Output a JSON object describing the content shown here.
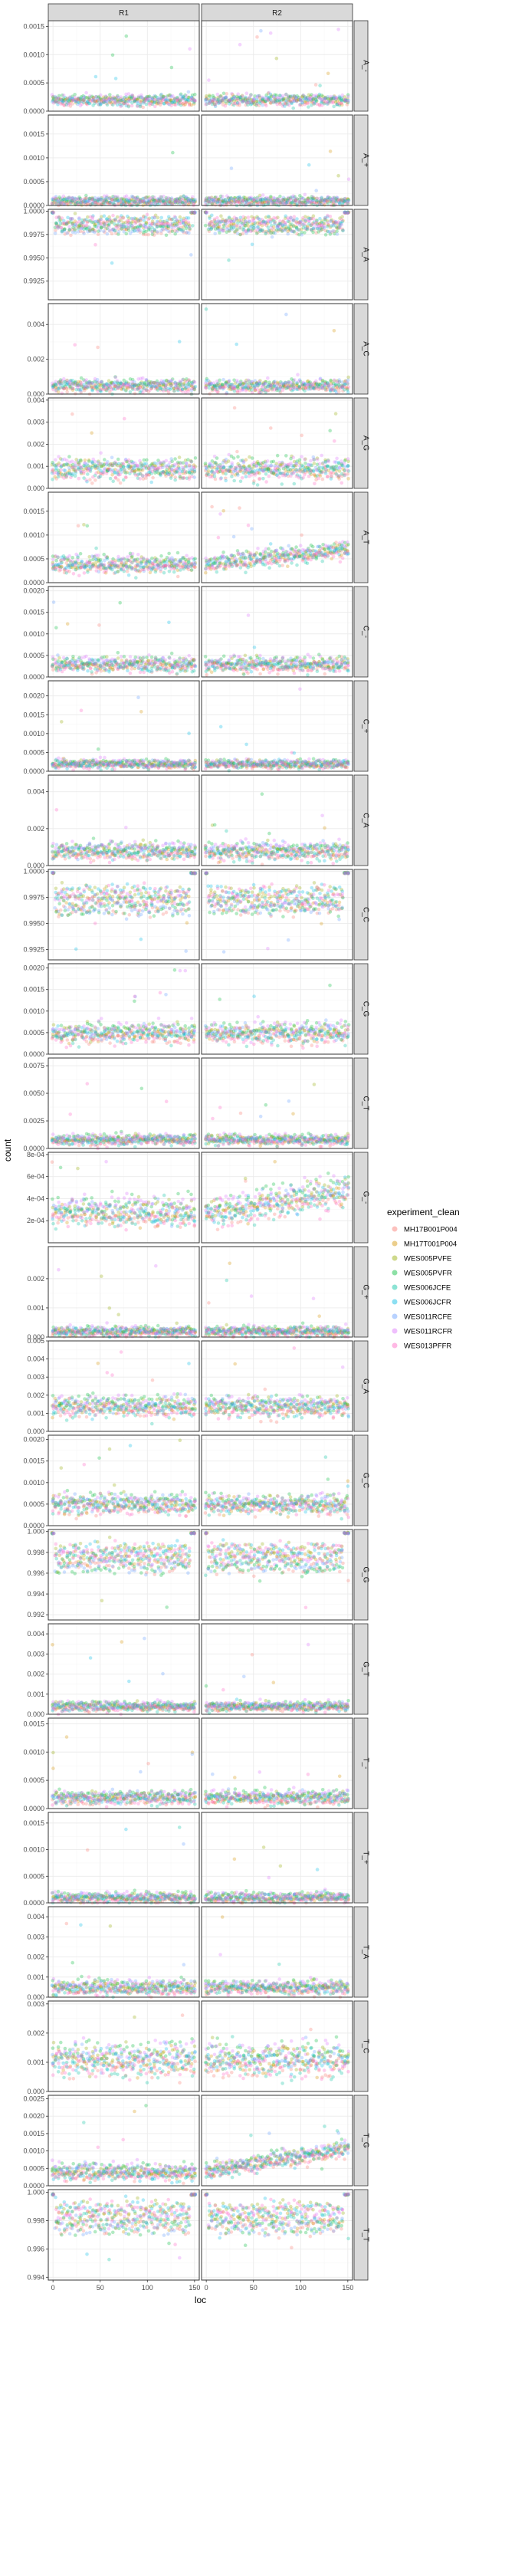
{
  "chart_data": {
    "type": "scatter",
    "facet_columns": [
      "R1",
      "R2"
    ],
    "xlabel": "loc",
    "ylabel": "count",
    "xlim": [
      -5,
      155
    ],
    "x_ticks": [
      0,
      50,
      100,
      150
    ],
    "x_tick_labels": [
      "0",
      "50",
      "100",
      "150"
    ],
    "legend": {
      "title": "experiment_clean",
      "position": "right",
      "entries": [
        "MH17B001P004",
        "MH17T001P004",
        "WES005PVFE",
        "WES005PVFR",
        "WES006JCFE",
        "WES006JCFR",
        "WES011RCFE",
        "WES011RCFR",
        "WES013PFFR"
      ],
      "colors": [
        "#F8766D",
        "#D39200",
        "#93AA00",
        "#00BA38",
        "#00C19F",
        "#00B9E3",
        "#619CFF",
        "#DB72FB",
        "#FF61C3"
      ]
    },
    "point_alpha": 0.3,
    "grid": true,
    "rows": [
      {
        "label": "A_-",
        "ylim": [
          0,
          0.0016
        ],
        "yticks": [
          0,
          0.0005,
          0.001,
          0.0015
        ],
        "yticklabels": [
          "0.0000",
          "0.0005",
          "0.0010",
          "0.0015"
        ],
        "level": 0.0002,
        "spread": 8e-05,
        "outlier_max": 0.0015,
        "r2_trend": 0
      },
      {
        "label": "A_+",
        "ylim": [
          0,
          0.0019
        ],
        "yticks": [
          0,
          0.0005,
          0.001,
          0.0015
        ],
        "yticklabels": [
          "0.0000",
          "0.0005",
          "0.0010",
          "0.0015"
        ],
        "level": 0.0001,
        "spread": 8e-05,
        "outlier_max": 0.0016,
        "r2_trend": 0
      },
      {
        "label": "A_A",
        "ylim": [
          0.9905,
          1.0002
        ],
        "yticks": [
          0.9925,
          0.995,
          0.9975,
          1.0
        ],
        "yticklabels": [
          "0.9925",
          "0.9950",
          "0.9975",
          "1.0000"
        ],
        "level": 0.9985,
        "spread": 0.0006,
        "outlier_max": 0.9935,
        "r2_trend": 0
      },
      {
        "label": "A_C",
        "ylim": [
          0,
          0.0052
        ],
        "yticks": [
          0,
          0.002,
          0.004
        ],
        "yticklabels": [
          "0.000",
          "0.002",
          "0.004"
        ],
        "level": 0.0005,
        "spread": 0.0003,
        "outlier_max": 0.005,
        "r2_trend": 0
      },
      {
        "label": "A_G",
        "ylim": [
          0,
          0.0041
        ],
        "yticks": [
          0,
          0.001,
          0.002,
          0.003,
          0.004
        ],
        "yticklabels": [
          "0.000",
          "0.001",
          "0.002",
          "0.003",
          "0.004"
        ],
        "level": 0.0009,
        "spread": 0.0004,
        "outlier_max": 0.0038,
        "r2_trend": 0
      },
      {
        "label": "A_T",
        "ylim": [
          0,
          0.0019
        ],
        "yticks": [
          0,
          0.0005,
          0.001,
          0.0015
        ],
        "yticklabels": [
          "0.0000",
          "0.0005",
          "0.0010",
          "0.0015"
        ],
        "level": 0.0004,
        "spread": 0.00015,
        "outlier_max": 0.0018,
        "r2_trend": 0.0003
      },
      {
        "label": "C_-",
        "ylim": [
          0,
          0.0021
        ],
        "yticks": [
          0,
          0.0005,
          0.001,
          0.0015,
          0.002
        ],
        "yticklabels": [
          "0.0000",
          "0.0005",
          "0.0010",
          "0.0015",
          "0.0020"
        ],
        "level": 0.0003,
        "spread": 0.00015,
        "outlier_max": 0.0018,
        "r2_trend": 0
      },
      {
        "label": "C_+",
        "ylim": [
          0,
          0.0024
        ],
        "yticks": [
          0,
          0.0005,
          0.001,
          0.0015,
          0.002
        ],
        "yticklabels": [
          "0.0000",
          "0.0005",
          "0.0010",
          "0.0015",
          "0.0020"
        ],
        "level": 0.0002,
        "spread": 0.0001,
        "outlier_max": 0.0022,
        "r2_trend": 0
      },
      {
        "label": "C_A",
        "ylim": [
          0,
          0.0049
        ],
        "yticks": [
          0,
          0.002,
          0.004
        ],
        "yticklabels": [
          "0.000",
          "0.002",
          "0.004"
        ],
        "level": 0.0008,
        "spread": 0.0004,
        "outlier_max": 0.0046,
        "r2_trend": 0
      },
      {
        "label": "C_C",
        "ylim": [
          0.9915,
          1.0002
        ],
        "yticks": [
          0.9925,
          0.995,
          0.9975,
          1.0
        ],
        "yticklabels": [
          "0.9925",
          "0.9950",
          "0.9975",
          "1.0000"
        ],
        "level": 0.9972,
        "spread": 0.0009,
        "outlier_max": 0.9922,
        "r2_trend": 0
      },
      {
        "label": "C_G",
        "ylim": [
          0,
          0.0021
        ],
        "yticks": [
          0,
          0.0005,
          0.001,
          0.0015,
          0.002
        ],
        "yticklabels": [
          "0.0000",
          "0.0005",
          "0.0010",
          "0.0015",
          "0.0020"
        ],
        "level": 0.0005,
        "spread": 0.0002,
        "outlier_max": 0.002,
        "r2_trend": 0
      },
      {
        "label": "C_T",
        "ylim": [
          0,
          0.0082
        ],
        "yticks": [
          0,
          0.0025,
          0.005,
          0.0075
        ],
        "yticklabels": [
          "0.0000",
          "0.0025",
          "0.0050",
          "0.0075"
        ],
        "level": 0.0008,
        "spread": 0.0004,
        "outlier_max": 0.006,
        "r2_trend": 0
      },
      {
        "label": "G_-",
        "ylim": [
          0,
          0.00082
        ],
        "yticks": [
          0.0002,
          0.0004,
          0.0006,
          0.0008
        ],
        "yticklabels": [
          "2e-04",
          "4e-04",
          "6e-04",
          "8e-04"
        ],
        "level": 0.00028,
        "spread": 0.00012,
        "outlier_max": 0.00078,
        "r2_trend": 0.0002
      },
      {
        "label": "G_+",
        "ylim": [
          0,
          0.0031
        ],
        "yticks": [
          0,
          0.001,
          0.002
        ],
        "yticklabels": [
          "0.000",
          "0.001",
          "0.002"
        ],
        "level": 0.0002,
        "spread": 0.00015,
        "outlier_max": 0.003,
        "r2_trend": 0
      },
      {
        "label": "G_A",
        "ylim": [
          0,
          0.005
        ],
        "yticks": [
          0,
          0.001,
          0.002,
          0.003,
          0.004,
          0.005
        ],
        "yticklabels": [
          "0.000",
          "0.001",
          "0.002",
          "0.003",
          "0.004",
          "0.005"
        ],
        "level": 0.0014,
        "spread": 0.0005,
        "outlier_max": 0.0048,
        "r2_trend": 0
      },
      {
        "label": "G_C",
        "ylim": [
          0,
          0.0021
        ],
        "yticks": [
          0,
          0.0005,
          0.001,
          0.0015,
          0.002
        ],
        "yticklabels": [
          "0.0000",
          "0.0005",
          "0.0010",
          "0.0015",
          "0.0020"
        ],
        "level": 0.0005,
        "spread": 0.0002,
        "outlier_max": 0.002,
        "r2_trend": 0
      },
      {
        "label": "G_G",
        "ylim": [
          0.9915,
          1.0002
        ],
        "yticks": [
          0.992,
          0.994,
          0.996,
          0.998,
          1.0
        ],
        "yticklabels": [
          "0.992",
          "0.994",
          "0.996",
          "0.998",
          "1.000"
        ],
        "level": 0.9975,
        "spread": 0.0009,
        "outlier_max": 0.9925,
        "r2_trend": 0
      },
      {
        "label": "G_T",
        "ylim": [
          0,
          0.0045
        ],
        "yticks": [
          0,
          0.001,
          0.002,
          0.003,
          0.004
        ],
        "yticklabels": [
          "0.000",
          "0.001",
          "0.002",
          "0.003",
          "0.004"
        ],
        "level": 0.0004,
        "spread": 0.0002,
        "outlier_max": 0.0042,
        "r2_trend": 0
      },
      {
        "label": "T_-",
        "ylim": [
          0,
          0.0016
        ],
        "yticks": [
          0,
          0.0005,
          0.001,
          0.0015
        ],
        "yticklabels": [
          "0.0000",
          "0.0005",
          "0.0010",
          "0.0015"
        ],
        "level": 0.0002,
        "spread": 0.0001,
        "outlier_max": 0.0014,
        "r2_trend": 0
      },
      {
        "label": "T_+",
        "ylim": [
          0,
          0.0017
        ],
        "yticks": [
          0,
          0.0005,
          0.001,
          0.0015
        ],
        "yticklabels": [
          "0.0000",
          "0.0005",
          "0.0010",
          "0.0015"
        ],
        "level": 0.0001,
        "spread": 8e-05,
        "outlier_max": 0.0016,
        "r2_trend": 0
      },
      {
        "label": "T_A",
        "ylim": [
          0,
          0.0045
        ],
        "yticks": [
          0,
          0.001,
          0.002,
          0.003,
          0.004
        ],
        "yticklabels": [
          "0.000",
          "0.001",
          "0.002",
          "0.003",
          "0.004"
        ],
        "level": 0.0005,
        "spread": 0.0003,
        "outlier_max": 0.0042,
        "r2_trend": 0
      },
      {
        "label": "T_C",
        "ylim": [
          0,
          0.0031
        ],
        "yticks": [
          0,
          0.001,
          0.002,
          0.003
        ],
        "yticklabels": [
          "0.000",
          "0.001",
          "0.002",
          "0.003"
        ],
        "level": 0.0011,
        "spread": 0.0005,
        "outlier_max": 0.0029,
        "r2_trend": 0
      },
      {
        "label": "T_G",
        "ylim": [
          0,
          0.0026
        ],
        "yticks": [
          0,
          0.0005,
          0.001,
          0.0015,
          0.002,
          0.0025
        ],
        "yticklabels": [
          "0.0000",
          "0.0005",
          "0.0010",
          "0.0015",
          "0.0020",
          "0.0025"
        ],
        "level": 0.0004,
        "spread": 0.0002,
        "outlier_max": 0.0025,
        "r2_trend": 0.0007
      },
      {
        "label": "T_T",
        "ylim": [
          0.9938,
          1.0002
        ],
        "yticks": [
          0.994,
          0.996,
          0.998,
          1.0
        ],
        "yticklabels": [
          "0.994",
          "0.996",
          "0.998",
          "1.000"
        ],
        "level": 0.9982,
        "spread": 0.0007,
        "outlier_max": 0.9948,
        "r2_trend": 0
      }
    ]
  }
}
